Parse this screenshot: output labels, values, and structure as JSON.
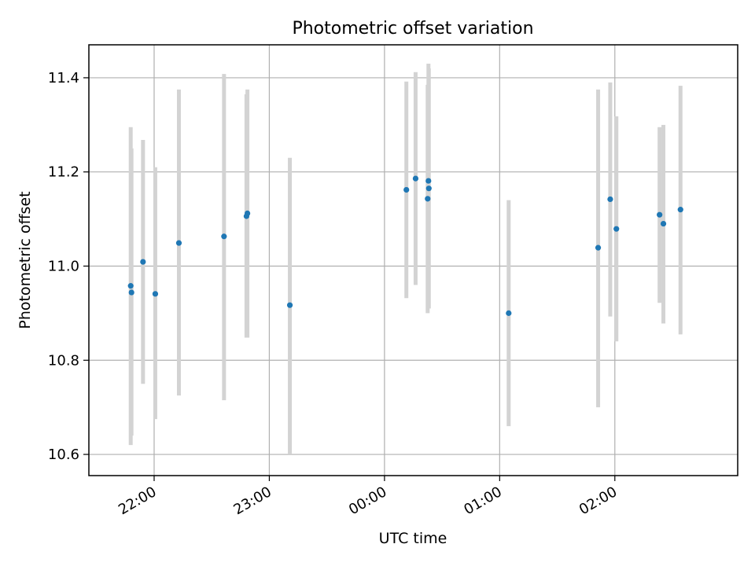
{
  "chart_data": {
    "type": "scatter",
    "title": "Photometric offset variation",
    "xlabel": "UTC time",
    "ylabel": "Photometric offset",
    "x_unit": "minutes relative to 00:00 UTC",
    "xlim": [
      -154,
      184
    ],
    "ylim": [
      10.555,
      11.47
    ],
    "x_ticks": [
      {
        "value": -120,
        "label": "22:00"
      },
      {
        "value": -60,
        "label": "23:00"
      },
      {
        "value": 0,
        "label": "00:00"
      },
      {
        "value": 60,
        "label": "01:00"
      },
      {
        "value": 120,
        "label": "02:00"
      }
    ],
    "y_ticks": [
      {
        "value": 10.6,
        "label": "10.6"
      },
      {
        "value": 10.8,
        "label": "10.8"
      },
      {
        "value": 11.0,
        "label": "11.0"
      },
      {
        "value": 11.2,
        "label": "11.2"
      },
      {
        "value": 11.4,
        "label": "11.4"
      }
    ],
    "grid": true,
    "point_color": "#1f77b4",
    "errorbar_color": "#d3d3d3",
    "points": [
      {
        "t": -132.2,
        "y": 10.958,
        "lo": 10.62,
        "hi": 11.295
      },
      {
        "t": -131.8,
        "y": 10.944,
        "lo": 10.64,
        "hi": 11.25
      },
      {
        "t": -125.8,
        "y": 11.009,
        "lo": 10.75,
        "hi": 11.268
      },
      {
        "t": -119.4,
        "y": 10.941,
        "lo": 10.675,
        "hi": 11.21
      },
      {
        "t": -107.1,
        "y": 11.049,
        "lo": 10.725,
        "hi": 11.375
      },
      {
        "t": -83.6,
        "y": 11.063,
        "lo": 10.715,
        "hi": 11.408
      },
      {
        "t": -71.9,
        "y": 11.106,
        "lo": 10.848,
        "hi": 11.365
      },
      {
        "t": -71.4,
        "y": 11.112,
        "lo": 10.848,
        "hi": 11.375
      },
      {
        "t": -49.3,
        "y": 10.917,
        "lo": 10.6,
        "hi": 11.23
      },
      {
        "t": 11.4,
        "y": 11.162,
        "lo": 10.932,
        "hi": 11.392
      },
      {
        "t": 16.2,
        "y": 11.186,
        "lo": 10.96,
        "hi": 11.412
      },
      {
        "t": 22.5,
        "y": 11.143,
        "lo": 10.9,
        "hi": 11.385
      },
      {
        "t": 22.9,
        "y": 11.181,
        "lo": 10.91,
        "hi": 11.43
      },
      {
        "t": 23.1,
        "y": 11.165,
        "lo": 10.91,
        "hi": 11.42
      },
      {
        "t": 64.7,
        "y": 10.9,
        "lo": 10.66,
        "hi": 11.14
      },
      {
        "t": 111.3,
        "y": 11.039,
        "lo": 10.7,
        "hi": 11.375
      },
      {
        "t": 117.6,
        "y": 11.142,
        "lo": 10.893,
        "hi": 11.39
      },
      {
        "t": 120.8,
        "y": 11.079,
        "lo": 10.84,
        "hi": 11.318
      },
      {
        "t": 143.3,
        "y": 11.109,
        "lo": 10.922,
        "hi": 11.295
      },
      {
        "t": 145.3,
        "y": 11.09,
        "lo": 10.878,
        "hi": 11.3
      },
      {
        "t": 154.2,
        "y": 11.12,
        "lo": 10.855,
        "hi": 11.383
      }
    ]
  }
}
